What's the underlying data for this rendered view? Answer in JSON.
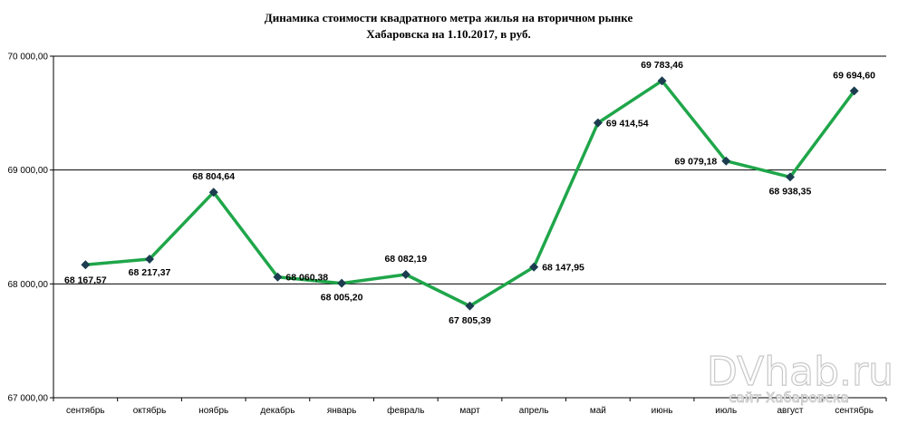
{
  "chart_data": {
    "type": "line",
    "title_line1": "Динамика стоимости квадратного метра жилья на вторичном рынке",
    "title_line2": "Хабаровска на 1.10.2017, в руб.",
    "categories": [
      "сентябрь",
      "октябрь",
      "ноябрь",
      "декабрь",
      "январь",
      "февраль",
      "март",
      "апрель",
      "май",
      "июнь",
      "июль",
      "август",
      "сентябрь"
    ],
    "values": [
      68167.57,
      68217.37,
      68804.64,
      68060.38,
      68005.2,
      68082.19,
      67805.39,
      68147.95,
      69414.54,
      69783.46,
      69079.18,
      68938.35,
      69694.6
    ],
    "data_labels": [
      "68 167,57",
      "68 217,37",
      "68 804,64",
      "68 060,38",
      "68 005,20",
      "68 082,19",
      "67 805,39",
      "68 147,95",
      "69 414,54",
      "69 783,46",
      "69 079,18",
      "68 938,35",
      "69 694,60"
    ],
    "yticks": [
      67000,
      68000,
      69000,
      70000
    ],
    "ytick_labels": [
      "67 000,00",
      "68 000,00",
      "69 000,00",
      "70 000,00"
    ],
    "ylim": [
      67000,
      70000
    ],
    "grid": true,
    "line_color": "#1fa64a",
    "marker_color": "#1b3d4f",
    "xlabel": "",
    "ylabel": ""
  },
  "watermark": {
    "main": "DVhab.ru",
    "sub": "сайт Хабаровска"
  }
}
